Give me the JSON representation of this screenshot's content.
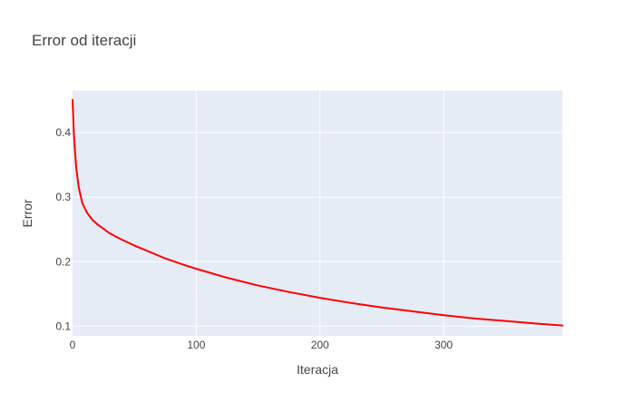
{
  "chart_data": {
    "type": "line",
    "title": "Error od iteracji",
    "xlabel": "Iteracja",
    "ylabel": "Error",
    "xlim": [
      0,
      396
    ],
    "ylim": [
      0.085,
      0.465
    ],
    "x_ticks": [
      0,
      100,
      200,
      300
    ],
    "y_ticks": [
      0.1,
      0.2,
      0.3,
      0.4
    ],
    "x_tick_labels": [
      "0",
      "100",
      "200",
      "300"
    ],
    "y_tick_labels": [
      "0.1",
      "0.2",
      "0.3",
      "0.4"
    ],
    "grid": true,
    "legend": false,
    "colors": {
      "plot_background": "#E5ECF6",
      "gridline": "#FFFFFF",
      "line": "#FF0000",
      "text": "#444444"
    },
    "series": [
      {
        "x": [
          0,
          1,
          2,
          3,
          5,
          8,
          12,
          16,
          20,
          25,
          30,
          40,
          50,
          60,
          75,
          90,
          100,
          125,
          150,
          175,
          200,
          225,
          250,
          275,
          300,
          325,
          350,
          375,
          396
        ],
        "y": [
          0.451,
          0.4,
          0.37,
          0.345,
          0.315,
          0.29,
          0.275,
          0.265,
          0.258,
          0.251,
          0.244,
          0.234,
          0.225,
          0.217,
          0.205,
          0.195,
          0.189,
          0.175,
          0.163,
          0.153,
          0.144,
          0.136,
          0.129,
          0.123,
          0.117,
          0.112,
          0.108,
          0.104,
          0.101
        ]
      }
    ]
  }
}
